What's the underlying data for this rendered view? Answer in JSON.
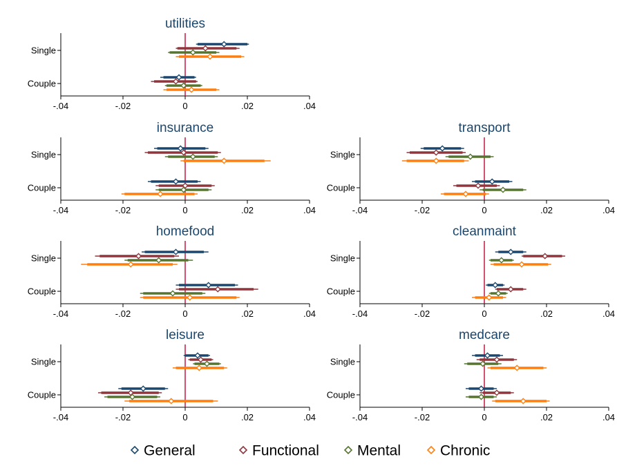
{
  "chart_data": {
    "type": "coefficient-plot",
    "layout": "4 rows x 2 columns of small multiples",
    "categories": [
      "Single",
      "Couple"
    ],
    "xlim": [
      -0.04,
      0.04
    ],
    "xticks": [
      -0.04,
      -0.02,
      0,
      0.02,
      0.04
    ],
    "xtick_labels": [
      "-.04",
      "-.02",
      "0",
      ".02",
      ".04"
    ],
    "reference_line": {
      "x": 0,
      "color": "#c10534"
    },
    "grid": false,
    "legend_position": "bottom",
    "series": [
      {
        "name": "General",
        "color": "#1a476f"
      },
      {
        "name": "Functional",
        "color": "#90353b"
      },
      {
        "name": "Mental",
        "color": "#55752f"
      },
      {
        "name": "Chronic",
        "color": "#ff7f0e"
      }
    ],
    "panels": [
      {
        "title": "utilities",
        "row": 0,
        "col": 0,
        "Single": [
          [
            0.0125,
            0.004,
            0.02,
            0.0035,
            0.0205
          ],
          [
            0.0065,
            -0.0025,
            0.0165,
            -0.003,
            0.0175
          ],
          [
            0.0025,
            -0.005,
            0.01,
            -0.0055,
            0.011
          ],
          [
            0.008,
            -0.002,
            0.018,
            -0.003,
            0.019
          ]
        ],
        "Couple": [
          [
            -0.002,
            -0.007,
            0.003,
            -0.008,
            0.0035
          ],
          [
            -0.003,
            -0.01,
            0.0035,
            -0.011,
            0.004
          ],
          [
            -0.0005,
            -0.006,
            0.005,
            -0.0065,
            0.0055
          ],
          [
            0.002,
            -0.006,
            0.01,
            -0.007,
            0.011
          ]
        ]
      },
      {
        "title": "insurance",
        "row": 1,
        "col": 0,
        "Single": [
          [
            -0.0015,
            -0.009,
            0.0065,
            -0.01,
            0.0075
          ],
          [
            -0.0005,
            -0.012,
            0.0105,
            -0.013,
            0.0115
          ],
          [
            0.0025,
            -0.0055,
            0.0095,
            -0.0065,
            0.0105
          ],
          [
            0.0125,
            -0.0005,
            0.0255,
            -0.0015,
            0.0275
          ]
        ],
        "Couple": [
          [
            -0.003,
            -0.011,
            0.004,
            -0.012,
            0.005
          ],
          [
            0.0,
            -0.0085,
            0.0085,
            -0.0095,
            0.0095
          ],
          [
            -0.0005,
            -0.0085,
            0.0075,
            -0.0095,
            0.0085
          ],
          [
            -0.008,
            -0.0195,
            0.003,
            -0.0205,
            0.004
          ]
        ]
      },
      {
        "title": "transport",
        "row": 1,
        "col": 1,
        "Single": [
          [
            -0.0135,
            -0.0195,
            -0.0075,
            -0.0205,
            -0.0065
          ],
          [
            -0.0155,
            -0.024,
            -0.007,
            -0.025,
            -0.006
          ],
          [
            -0.0045,
            -0.0115,
            0.002,
            -0.0125,
            0.003
          ],
          [
            -0.0155,
            -0.025,
            -0.0065,
            -0.0265,
            -0.005
          ]
        ],
        "Couple": [
          [
            0.0025,
            -0.003,
            0.008,
            -0.004,
            0.009
          ],
          [
            -0.002,
            -0.009,
            0.004,
            -0.01,
            0.005
          ],
          [
            0.006,
            -0.0005,
            0.0125,
            -0.0015,
            0.0135
          ],
          [
            -0.006,
            -0.013,
            0.0005,
            -0.014,
            0.0015
          ]
        ]
      },
      {
        "title": "homefood",
        "row": 2,
        "col": 0,
        "Single": [
          [
            -0.003,
            -0.013,
            0.006,
            -0.014,
            0.0075
          ],
          [
            -0.015,
            -0.0275,
            -0.0035,
            -0.029,
            -0.002
          ],
          [
            -0.0085,
            -0.0185,
            0.001,
            -0.0195,
            0.0025
          ],
          [
            -0.0175,
            -0.0315,
            -0.004,
            -0.0335,
            -0.0025
          ]
        ],
        "Couple": [
          [
            0.0075,
            -0.002,
            0.016,
            -0.003,
            0.017
          ],
          [
            0.0105,
            -0.002,
            0.022,
            -0.003,
            0.0235
          ],
          [
            -0.004,
            -0.0135,
            0.0055,
            -0.0145,
            0.0065
          ],
          [
            0.0015,
            -0.0135,
            0.0165,
            -0.0145,
            0.0175
          ]
        ]
      },
      {
        "title": "cleanmaint",
        "row": 2,
        "col": 1,
        "Single": [
          [
            0.0085,
            0.0045,
            0.0125,
            0.0035,
            0.0135
          ],
          [
            0.0195,
            0.0125,
            0.025,
            0.012,
            0.026
          ],
          [
            0.0055,
            0.002,
            0.009,
            0.0015,
            0.0095
          ],
          [
            0.012,
            0.003,
            0.0205,
            0.002,
            0.0215
          ]
        ],
        "Couple": [
          [
            0.0035,
            0.001,
            0.006,
            0.0005,
            0.0065
          ],
          [
            0.0085,
            0.004,
            0.0125,
            0.0035,
            0.0135
          ],
          [
            0.0045,
            0.002,
            0.007,
            0.0015,
            0.0075
          ],
          [
            0.0015,
            -0.003,
            0.006,
            -0.004,
            0.007
          ]
        ]
      },
      {
        "title": "leisure",
        "row": 3,
        "col": 0,
        "Single": [
          [
            0.004,
            0.0,
            0.0075,
            -0.0005,
            0.008
          ],
          [
            0.005,
            0.0015,
            0.0085,
            0.001,
            0.009
          ],
          [
            0.007,
            0.003,
            0.011,
            0.0025,
            0.0115
          ],
          [
            0.0045,
            -0.003,
            0.0125,
            -0.004,
            0.0135
          ]
        ],
        "Couple": [
          [
            -0.0135,
            -0.0205,
            -0.0065,
            -0.0215,
            -0.0055
          ],
          [
            -0.0175,
            -0.027,
            -0.0085,
            -0.028,
            -0.0075
          ],
          [
            -0.017,
            -0.025,
            -0.009,
            -0.026,
            -0.008
          ],
          [
            -0.0045,
            -0.018,
            0.009,
            -0.0195,
            0.0105
          ]
        ]
      },
      {
        "title": "medcare",
        "row": 3,
        "col": 1,
        "Single": [
          [
            0.001,
            -0.003,
            0.005,
            -0.004,
            0.006
          ],
          [
            0.004,
            -0.0015,
            0.0095,
            -0.0025,
            0.0105
          ],
          [
            -0.0005,
            -0.0055,
            0.0045,
            -0.0065,
            0.0055
          ],
          [
            0.0105,
            0.002,
            0.019,
            0.001,
            0.02
          ]
        ],
        "Couple": [
          [
            -0.001,
            -0.005,
            0.003,
            -0.006,
            0.004
          ],
          [
            0.004,
            -0.0005,
            0.0085,
            -0.0015,
            0.0095
          ],
          [
            -0.001,
            -0.005,
            0.003,
            -0.006,
            0.004
          ],
          [
            0.0125,
            0.0035,
            0.02,
            0.0025,
            0.021
          ]
        ]
      }
    ]
  }
}
